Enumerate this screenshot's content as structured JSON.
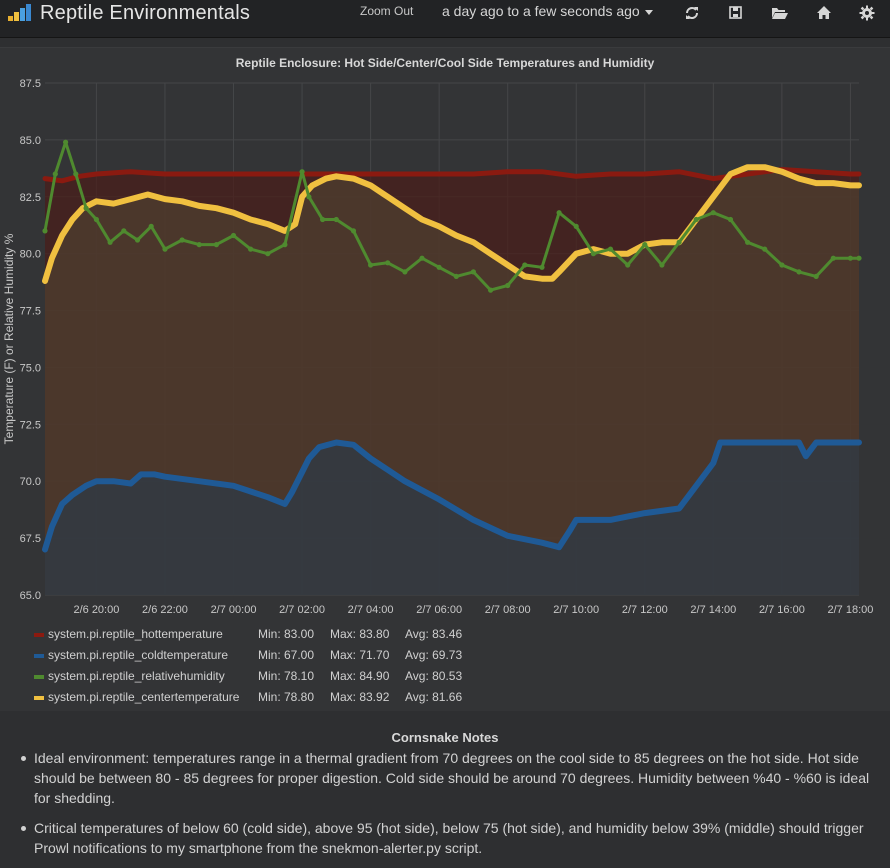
{
  "navbar": {
    "title": "Reptile Environmentals",
    "logo_icon": "bar-chart-logo-icon",
    "zoom_out": "Zoom Out",
    "time_range": "a day ago to a few seconds ago",
    "icons": [
      "refresh-icon",
      "save-icon",
      "folder-open-icon",
      "home-icon",
      "gear-icon"
    ],
    "colors": {
      "background": "#222325"
    }
  },
  "chart_data": {
    "type": "line",
    "title": "Reptile Enclosure: Hot Side/Center/Cool Side Temperatures and Humidity",
    "xlabel": "",
    "ylabel": "Temperature (F) or Relative Humidity %",
    "ylim": [
      65.0,
      87.5
    ],
    "yticks": [
      "65.0",
      "67.5",
      "70.0",
      "72.5",
      "75.0",
      "77.5",
      "80.0",
      "82.5",
      "85.0",
      "87.5"
    ],
    "xlim": [
      18.5,
      42.25
    ],
    "xticks": [
      {
        "label": "2/6 20:00",
        "h": 20
      },
      {
        "label": "2/6 22:00",
        "h": 22
      },
      {
        "label": "2/7 00:00",
        "h": 24
      },
      {
        "label": "2/7 02:00",
        "h": 26
      },
      {
        "label": "2/7 04:00",
        "h": 28
      },
      {
        "label": "2/7 06:00",
        "h": 30
      },
      {
        "label": "2/7 08:00",
        "h": 32
      },
      {
        "label": "2/7 10:00",
        "h": 34
      },
      {
        "label": "2/7 12:00",
        "h": 36
      },
      {
        "label": "2/7 14:00",
        "h": 38
      },
      {
        "label": "2/7 16:00",
        "h": 40
      },
      {
        "label": "2/7 18:00",
        "h": 42
      }
    ],
    "grid": true,
    "series": [
      {
        "name": "system.pi.reptile_hottemperature",
        "color": "#8b1a10",
        "fill": "#4a1d18",
        "x": [
          18.5,
          19,
          19.5,
          20,
          21,
          22,
          23,
          24,
          25,
          26,
          27,
          28,
          29,
          30,
          31,
          32,
          33,
          34,
          35,
          36,
          37,
          38,
          39,
          40,
          41,
          42,
          42.25
        ],
        "y": [
          83.3,
          83.2,
          83.4,
          83.5,
          83.6,
          83.5,
          83.5,
          83.5,
          83.5,
          83.5,
          83.5,
          83.5,
          83.5,
          83.5,
          83.5,
          83.6,
          83.6,
          83.4,
          83.5,
          83.5,
          83.6,
          83.3,
          83.5,
          83.7,
          83.6,
          83.5,
          83.5
        ],
        "min": "83.00",
        "max": "83.80",
        "avg": "83.46"
      },
      {
        "name": "system.pi.reptile_coldtemperature",
        "color": "#1f5a96",
        "fill": "#2c3a48",
        "x": [
          18.5,
          18.7,
          19,
          19.3,
          19.7,
          20,
          20.5,
          21,
          21.3,
          21.7,
          22,
          23,
          24,
          25,
          25.5,
          25.7,
          26.2,
          26.5,
          27,
          27.5,
          28,
          28.5,
          29,
          30,
          31,
          32,
          33,
          33.5,
          33.8,
          34,
          35,
          36,
          37,
          37.5,
          38,
          38.2,
          39,
          40,
          40.5,
          40.7,
          41,
          42,
          42.25
        ],
        "y": [
          67.0,
          68.0,
          69.0,
          69.4,
          69.8,
          70.0,
          70.0,
          69.9,
          70.3,
          70.3,
          70.2,
          70.0,
          69.8,
          69.3,
          69.0,
          69.5,
          71.0,
          71.5,
          71.7,
          71.6,
          71.0,
          70.5,
          70.0,
          69.2,
          68.3,
          67.6,
          67.3,
          67.1,
          67.8,
          68.3,
          68.3,
          68.6,
          68.8,
          69.8,
          70.8,
          71.7,
          71.7,
          71.7,
          71.7,
          71.1,
          71.7,
          71.7,
          71.7
        ],
        "min": "67.00",
        "max": "71.70",
        "avg": "69.73"
      },
      {
        "name": "system.pi.reptile_relativehumidity",
        "color": "#4f8a2f",
        "fill": null,
        "x": [
          18.5,
          18.8,
          19.1,
          19.4,
          19.7,
          20,
          20.4,
          20.8,
          21.2,
          21.6,
          22,
          22.5,
          23,
          23.5,
          24,
          24.5,
          25,
          25.5,
          26,
          26.2,
          26.6,
          27,
          27.5,
          28,
          28.5,
          29,
          29.5,
          30,
          30.5,
          31,
          31.5,
          32,
          32.5,
          33,
          33.5,
          34,
          34.5,
          35,
          35.5,
          36,
          36.5,
          37,
          37.5,
          38,
          38.5,
          39,
          39.5,
          40,
          40.5,
          41,
          41.5,
          42,
          42.25
        ],
        "y": [
          81.0,
          83.5,
          84.9,
          83.5,
          82.0,
          81.5,
          80.5,
          81.0,
          80.6,
          81.2,
          80.2,
          80.6,
          80.4,
          80.4,
          80.8,
          80.2,
          80.0,
          80.4,
          83.6,
          82.5,
          81.5,
          81.5,
          81.0,
          79.5,
          79.6,
          79.2,
          79.8,
          79.4,
          79.0,
          79.2,
          78.4,
          78.6,
          79.5,
          79.4,
          81.8,
          81.2,
          80.0,
          80.2,
          79.5,
          80.4,
          79.5,
          80.5,
          81.5,
          81.8,
          81.5,
          80.5,
          80.2,
          79.5,
          79.2,
          79.0,
          79.8,
          79.8,
          79.8
        ],
        "min": "78.10",
        "max": "84.90",
        "avg": "80.53"
      },
      {
        "name": "system.pi.reptile_centertemperature",
        "color": "#f0c040",
        "fill": "#4e4030",
        "x": [
          18.5,
          18.7,
          19,
          19.3,
          19.6,
          20,
          20.5,
          21,
          21.5,
          22,
          22.5,
          23,
          23.5,
          24,
          24.5,
          25,
          25.5,
          25.8,
          26,
          26.3,
          26.7,
          27,
          27.5,
          28,
          28.5,
          29,
          29.5,
          30,
          30.5,
          31,
          31.5,
          32,
          32.5,
          33,
          33.3,
          33.5,
          34,
          34.5,
          35,
          35.5,
          36,
          36.5,
          37,
          37.5,
          38,
          38.5,
          39,
          39.5,
          40,
          40.5,
          41,
          41.5,
          42,
          42.25
        ],
        "y": [
          78.8,
          79.8,
          80.8,
          81.5,
          82.0,
          82.3,
          82.2,
          82.4,
          82.6,
          82.4,
          82.3,
          82.1,
          82.0,
          81.8,
          81.5,
          81.3,
          81.0,
          81.3,
          82.5,
          83.0,
          83.3,
          83.4,
          83.3,
          83.0,
          82.5,
          82.0,
          81.5,
          81.2,
          80.8,
          80.5,
          80.0,
          79.5,
          79.0,
          78.9,
          78.9,
          79.2,
          80.0,
          80.2,
          80.0,
          80.0,
          80.4,
          80.5,
          80.5,
          81.5,
          82.5,
          83.5,
          83.8,
          83.8,
          83.6,
          83.3,
          83.1,
          83.1,
          83.0,
          83.0
        ],
        "min": "78.80",
        "max": "83.92",
        "avg": "81.66"
      }
    ],
    "legend": {
      "placement": "bottom-left",
      "min_label": "Min:",
      "max_label": "Max:",
      "avg_label": "Avg:"
    }
  },
  "notes": {
    "title": "Cornsnake Notes",
    "items": [
      "Ideal environment: temperatures range in a thermal gradient from 70 degrees on the cool side to 85 degrees on the hot side. Hot side should be between 80 - 85 degrees for proper digestion. Cold side should be around 70 degrees. Humidity between %40 - %60 is ideal for shedding.",
      "Critical temperatures of below 60 (cold side), above 95 (hot side), below 75 (hot side), and humidity below 39% (middle) should trigger Prowl notifications to my smartphone from the snekmon-alerter.py script."
    ]
  }
}
